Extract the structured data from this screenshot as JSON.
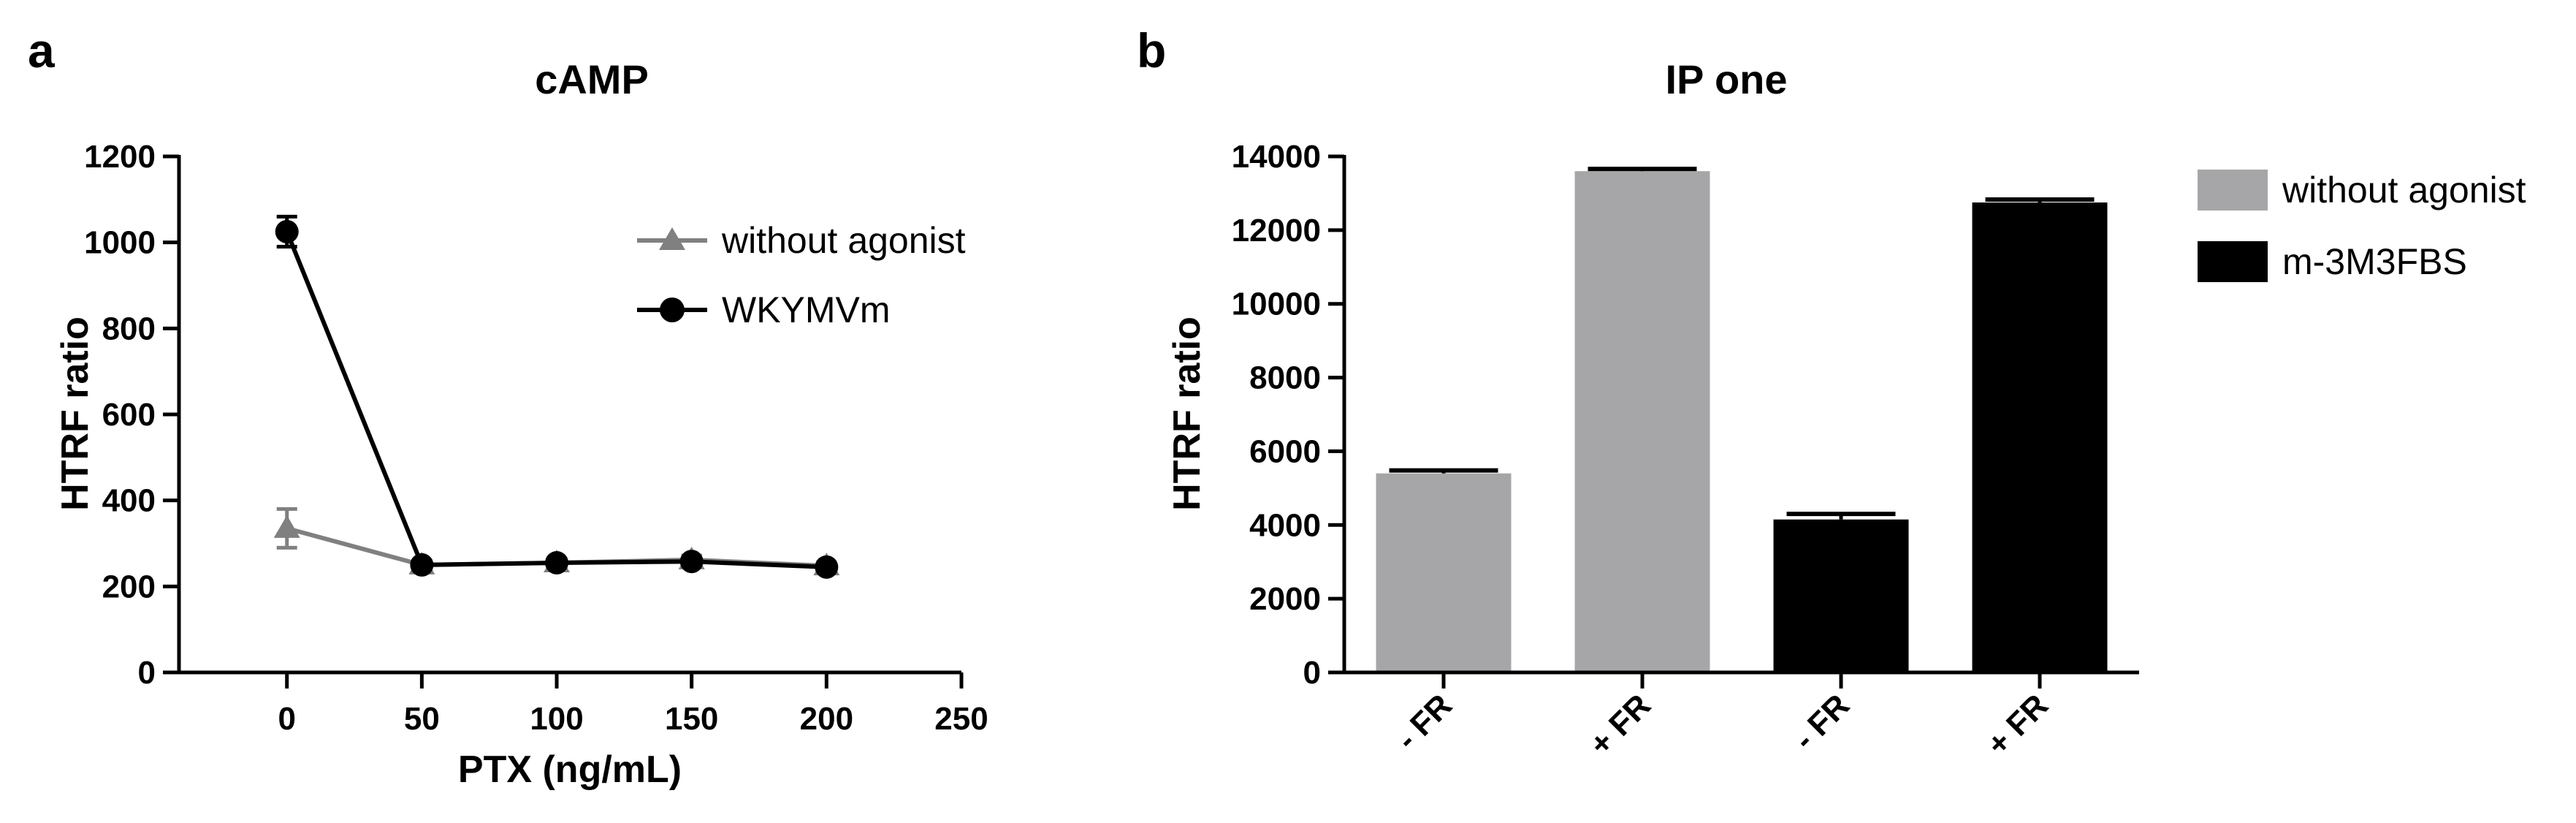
{
  "chart_data": [
    {
      "panel": "a",
      "type": "line",
      "title": "cAMP",
      "xlabel": "PTX (ng/mL)",
      "ylabel": "HTRF ratio",
      "xlim": [
        -40,
        250
      ],
      "ylim": [
        0,
        1200
      ],
      "xticks": [
        0,
        50,
        100,
        150,
        200,
        250
      ],
      "yticks": [
        0,
        200,
        400,
        600,
        800,
        1000,
        1200
      ],
      "legend_position": "top-right",
      "grid": false,
      "x": [
        0,
        50,
        100,
        150,
        200
      ],
      "series": [
        {
          "name": "without agonist",
          "marker": "triangle",
          "color": "#808080",
          "values": [
            335,
            250,
            255,
            262,
            248
          ],
          "errors": [
            45,
            10,
            10,
            10,
            8
          ]
        },
        {
          "name": "WKYMVm",
          "marker": "circle",
          "color": "#000000",
          "values": [
            1025,
            250,
            255,
            258,
            245
          ],
          "errors": [
            35,
            10,
            10,
            10,
            8
          ]
        }
      ]
    },
    {
      "panel": "b",
      "type": "bar",
      "title": "IP one",
      "xlabel": "",
      "ylabel": "HTRF ratio",
      "ylim": [
        0,
        14000
      ],
      "yticks": [
        0,
        2000,
        4000,
        6000,
        8000,
        10000,
        12000,
        14000
      ],
      "legend_position": "top-right",
      "grid": false,
      "categories": [
        "- FR",
        "+ FR",
        "- FR",
        "+ FR"
      ],
      "values": [
        5400,
        13600,
        4150,
        12750
      ],
      "errors": [
        80,
        60,
        150,
        80
      ],
      "bar_series": [
        "without agonist",
        "without agonist",
        "m-3M3FBS",
        "m-3M3FBS"
      ],
      "series": [
        {
          "name": "without agonist",
          "color": "#a6a6a8"
        },
        {
          "name": "m-3M3FBS",
          "color": "#000000"
        }
      ]
    }
  ]
}
